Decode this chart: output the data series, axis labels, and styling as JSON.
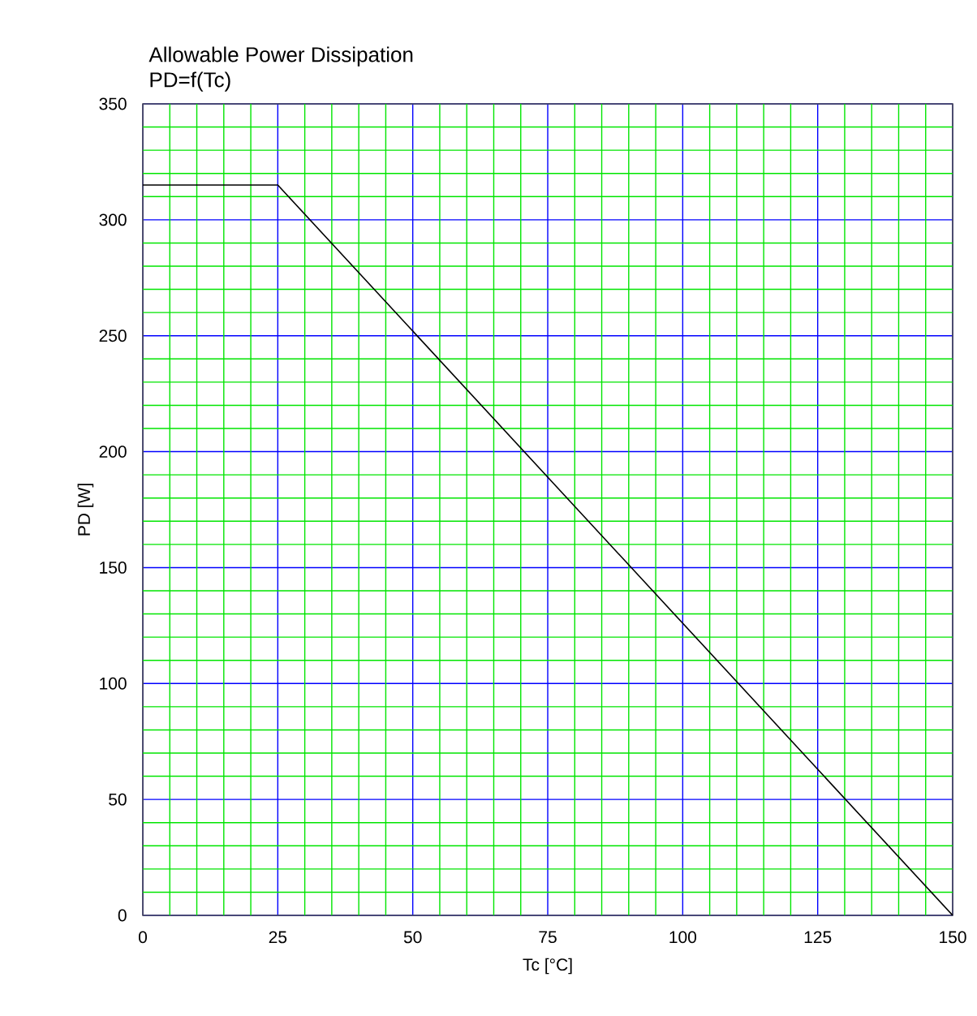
{
  "chart_data": {
    "type": "line",
    "title": "Allowable Power Dissipation",
    "subtitle": "PD=f(Tc)",
    "xlabel": "Tc [°C]",
    "ylabel": "PD [W]",
    "x": [
      0,
      25,
      150
    ],
    "series": [
      {
        "color": "#000000",
        "values": [
          315,
          315,
          0
        ]
      }
    ],
    "xlim": [
      0,
      150
    ],
    "ylim": [
      0,
      350
    ],
    "xticks": [
      0,
      {
        "value": 5,
        "label": null
      },
      {
        "value": 10,
        "label": null
      },
      {
        "value": 15,
        "label": null
      },
      {
        "value": 20,
        "label": null
      },
      25,
      {
        "value": 30,
        "label": null
      },
      {
        "value": 35,
        "label": null
      },
      {
        "value": 40,
        "label": null
      },
      {
        "value": 45,
        "label": null
      },
      50,
      {
        "value": 55,
        "label": null
      },
      {
        "value": 60,
        "label": null
      },
      {
        "value": 65,
        "label": null
      },
      {
        "value": 70,
        "label": null
      },
      75,
      {
        "value": 80,
        "label": null
      },
      {
        "value": 85,
        "label": null
      },
      {
        "value": 90,
        "label": null
      },
      {
        "value": 95,
        "label": null
      },
      100,
      {
        "value": 105,
        "label": null
      },
      {
        "value": 110,
        "label": null
      },
      {
        "value": 115,
        "label": null
      },
      {
        "value": 120,
        "label": null
      },
      125,
      {
        "value": 130,
        "label": null
      },
      {
        "value": 135,
        "label": null
      },
      {
        "value": 140,
        "label": null
      },
      {
        "value": 145,
        "label": null
      },
      150
    ],
    "yticks": [
      0,
      {
        "value": 10,
        "label": null
      },
      {
        "value": 20,
        "label": null
      },
      {
        "value": 30,
        "label": null
      },
      {
        "value": 40,
        "label": null
      },
      50,
      {
        "value": 60,
        "label": null
      },
      {
        "value": 70,
        "label": null
      },
      {
        "value": 80,
        "label": null
      },
      {
        "value": 90,
        "label": null
      },
      100,
      {
        "value": 110,
        "label": null
      },
      {
        "value": 120,
        "label": null
      },
      {
        "value": 130,
        "label": null
      },
      {
        "value": 140,
        "label": null
      },
      150,
      {
        "value": 160,
        "label": null
      },
      {
        "value": 170,
        "label": null
      },
      {
        "value": 180,
        "label": null
      },
      {
        "value": 190,
        "label": null
      },
      200,
      {
        "value": 210,
        "label": null
      },
      {
        "value": 220,
        "label": null
      },
      {
        "value": 230,
        "label": null
      },
      {
        "value": 240,
        "label": null
      },
      250,
      {
        "value": 260,
        "label": null
      },
      {
        "value": 270,
        "label": null
      },
      {
        "value": 280,
        "label": null
      },
      {
        "value": 290,
        "label": null
      },
      300,
      {
        "value": 310,
        "label": null
      },
      {
        "value": 320,
        "label": null
      },
      {
        "value": 330,
        "label": null
      },
      {
        "value": 340,
        "label": null
      },
      350
    ],
    "grid": true,
    "marker": "none",
    "line_style": "solid"
  }
}
